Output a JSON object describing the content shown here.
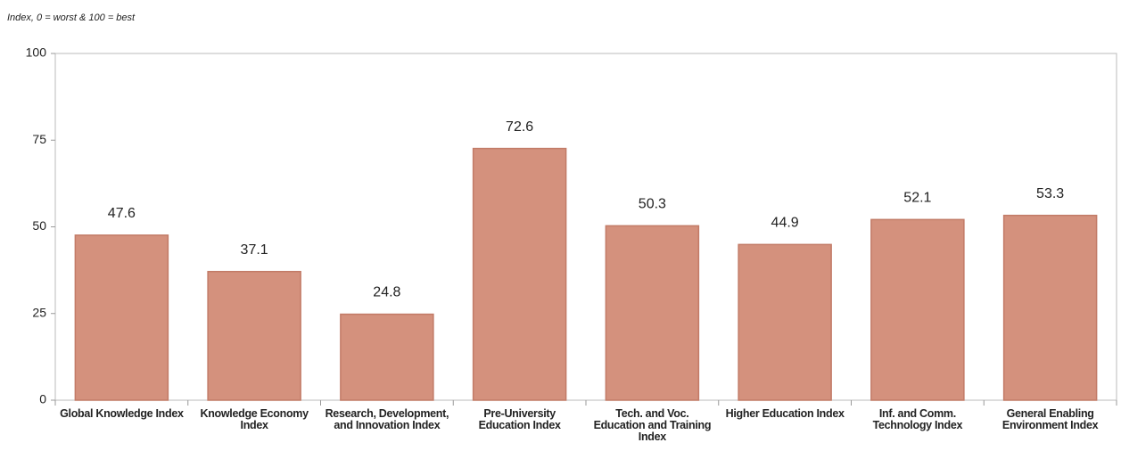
{
  "chart_data": {
    "type": "bar",
    "y_label": "Index, 0 = worst & 100 = best",
    "categories": [
      "Global Knowledge Index",
      "Knowledge Economy Index",
      "Research, Development, and Innovation Index",
      "Pre-University Education Index",
      "Tech. and Voc. Education and Training Index",
      "Higher Education Index",
      "Inf. and Comm. Technology Index",
      "General Enabling Environment Index"
    ],
    "values": [
      47.6,
      37.1,
      24.8,
      72.6,
      50.3,
      44.9,
      52.1,
      53.3
    ],
    "color": "#d4917d",
    "ylim": [
      0,
      100
    ],
    "yticks": [
      0,
      25,
      50,
      75,
      100
    ],
    "grid": false
  }
}
